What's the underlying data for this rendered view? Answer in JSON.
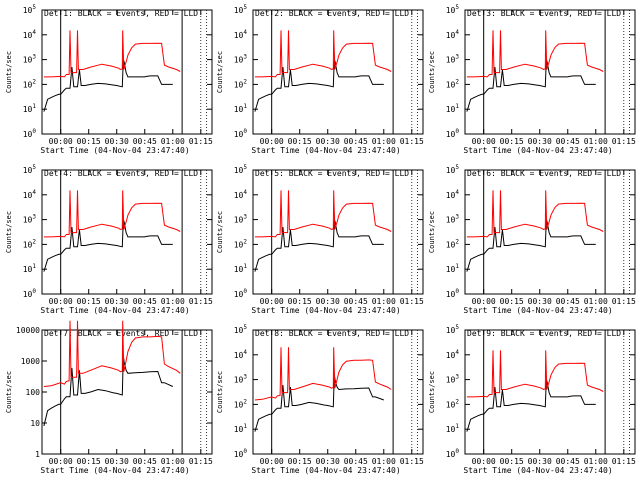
{
  "chart_data": [
    {
      "type": "line",
      "title": "Det 1: BLACK = Events, RED = LLD",
      "xlabel": "Start Time (04-Nov-04 23:47:40)",
      "ylabel": "Counts/sec",
      "ylog": true,
      "ylim": [
        1,
        100000
      ],
      "ytick_labels": [
        "10^0",
        "10^1",
        "10^2",
        "10^3",
        "10^4",
        "10^5"
      ],
      "x_tick_labels": [
        "00:00",
        "00:15",
        "00:30",
        "00:45",
        "01:00",
        "01:15"
      ],
      "series": [
        {
          "name": "Events",
          "color": "#000000",
          "key": "black_small"
        },
        {
          "name": "LLD",
          "color": "#ff0000",
          "key": "red_small"
        }
      ]
    },
    {
      "type": "line",
      "title": "Det 2: BLACK = Events, RED = LLD",
      "xlabel": "Start Time (04-Nov-04 23:47:40)",
      "ylabel": "Counts/sec",
      "ylog": true,
      "ylim": [
        1,
        100000
      ],
      "ytick_labels": [
        "10^0",
        "10^1",
        "10^2",
        "10^3",
        "10^4",
        "10^5"
      ],
      "x_tick_labels": [
        "00:00",
        "00:15",
        "00:30",
        "00:45",
        "01:00",
        "01:15"
      ],
      "series": [
        {
          "name": "Events",
          "color": "#000000",
          "key": "black_small"
        },
        {
          "name": "LLD",
          "color": "#ff0000",
          "key": "red_small"
        }
      ]
    },
    {
      "type": "line",
      "title": "Det 3: BLACK = Events, RED = LLD",
      "xlabel": "Start Time (04-Nov-04 23:47:40)",
      "ylabel": "Counts/sec",
      "ylog": true,
      "ylim": [
        1,
        100000
      ],
      "ytick_labels": [
        "10^0",
        "10^1",
        "10^2",
        "10^3",
        "10^4",
        "10^5"
      ],
      "x_tick_labels": [
        "00:00",
        "00:15",
        "00:30",
        "00:45",
        "01:00",
        "01:15"
      ],
      "series": [
        {
          "name": "Events",
          "color": "#000000",
          "key": "black_small"
        },
        {
          "name": "LLD",
          "color": "#ff0000",
          "key": "red_small"
        }
      ]
    },
    {
      "type": "line",
      "title": "Det 4: BLACK = Events, RED = LLD",
      "xlabel": "Start Time (04-Nov-04 23:47:40)",
      "ylabel": "Counts/sec",
      "ylog": true,
      "ylim": [
        1,
        100000
      ],
      "ytick_labels": [
        "10^0",
        "10^1",
        "10^2",
        "10^3",
        "10^4",
        "10^5"
      ],
      "x_tick_labels": [
        "00:00",
        "00:15",
        "00:30",
        "00:45",
        "01:00",
        "01:15"
      ],
      "series": [
        {
          "name": "Events",
          "color": "#000000",
          "key": "black_small"
        },
        {
          "name": "LLD",
          "color": "#ff0000",
          "key": "red_small"
        }
      ]
    },
    {
      "type": "line",
      "title": "Det 5: BLACK = Events, RED = LLD",
      "xlabel": "Start Time (04-Nov-04 23:47:40)",
      "ylabel": "Counts/sec",
      "ylog": true,
      "ylim": [
        1,
        100000
      ],
      "ytick_labels": [
        "10^0",
        "10^1",
        "10^2",
        "10^3",
        "10^4",
        "10^5"
      ],
      "x_tick_labels": [
        "00:00",
        "00:15",
        "00:30",
        "00:45",
        "01:00",
        "01:15"
      ],
      "series": [
        {
          "name": "Events",
          "color": "#000000",
          "key": "black_small"
        },
        {
          "name": "LLD",
          "color": "#ff0000",
          "key": "red_small"
        }
      ]
    },
    {
      "type": "line",
      "title": "Det 6: BLACK = Events, RED = LLD",
      "xlabel": "Start Time (04-Nov-04 23:47:40)",
      "ylabel": "Counts/sec",
      "ylog": true,
      "ylim": [
        1,
        100000
      ],
      "ytick_labels": [
        "10^0",
        "10^1",
        "10^2",
        "10^3",
        "10^4",
        "10^5"
      ],
      "x_tick_labels": [
        "00:00",
        "00:15",
        "00:30",
        "00:45",
        "01:00",
        "01:15"
      ],
      "series": [
        {
          "name": "Events",
          "color": "#000000",
          "key": "black_small"
        },
        {
          "name": "LLD",
          "color": "#ff0000",
          "key": "red_small"
        }
      ]
    },
    {
      "type": "line",
      "title": "Det 7: BLACK = Events, RED = LLD",
      "xlabel": "Start Time (04-Nov-04 23:47:40)",
      "ylabel": "Counts/sec",
      "ylog": true,
      "ylim": [
        1,
        10000
      ],
      "ytick_labels": [
        "1",
        "10",
        "100",
        "1000",
        "10000"
      ],
      "x_tick_labels": [
        "00:00",
        "00:15",
        "00:30",
        "00:45",
        "01:00",
        "01:15"
      ],
      "series": [
        {
          "name": "Events",
          "color": "#000000",
          "key": "black_big"
        },
        {
          "name": "LLD",
          "color": "#ff0000",
          "key": "red_big"
        }
      ]
    },
    {
      "type": "line",
      "title": "Det 8: BLACK = Events, RED = LLD",
      "xlabel": "Start Time (04-Nov-04 23:47:40)",
      "ylabel": "Counts/sec",
      "ylog": true,
      "ylim": [
        1,
        100000
      ],
      "ytick_labels": [
        "10^0",
        "10^1",
        "10^2",
        "10^3",
        "10^4",
        "10^5"
      ],
      "x_tick_labels": [
        "00:00",
        "00:15",
        "00:30",
        "00:45",
        "01:00",
        "01:15"
      ],
      "series": [
        {
          "name": "Events",
          "color": "#000000",
          "key": "black_big"
        },
        {
          "name": "LLD",
          "color": "#ff0000",
          "key": "red_big"
        }
      ]
    },
    {
      "type": "line",
      "title": "Det 9: BLACK = Events, RED = LLD",
      "xlabel": "Start Time (04-Nov-04 23:47:40)",
      "ylabel": "Counts/sec",
      "ylog": true,
      "ylim": [
        1,
        100000
      ],
      "ytick_labels": [
        "10^0",
        "10^1",
        "10^2",
        "10^3",
        "10^4",
        "10^5"
      ],
      "x_tick_labels": [
        "00:00",
        "00:15",
        "00:30",
        "00:45",
        "01:00",
        "01:15"
      ],
      "series": [
        {
          "name": "Events",
          "color": "#000000",
          "key": "black_small"
        },
        {
          "name": "LLD",
          "color": "#ff0000",
          "key": "red_small"
        }
      ]
    }
  ],
  "series_data": {
    "black_small": [
      [
        -9,
        8
      ],
      [
        -7,
        25
      ],
      [
        -5,
        30
      ],
      [
        -3,
        35
      ],
      [
        -1,
        40
      ],
      [
        0,
        40
      ],
      [
        2,
        60
      ],
      [
        3,
        70
      ],
      [
        5,
        70
      ],
      [
        6,
        500
      ],
      [
        7,
        80
      ],
      [
        9,
        80
      ],
      [
        10,
        400
      ],
      [
        11,
        90
      ],
      [
        13,
        90
      ],
      [
        16,
        100
      ],
      [
        20,
        110
      ],
      [
        24,
        105
      ],
      [
        28,
        95
      ],
      [
        30,
        90
      ],
      [
        33,
        80
      ],
      [
        33.5,
        1000
      ],
      [
        34,
        800
      ],
      [
        35,
        300
      ],
      [
        36,
        200
      ],
      [
        45,
        200
      ],
      [
        46,
        210
      ],
      [
        48,
        220
      ],
      [
        52,
        220
      ],
      [
        54,
        100
      ],
      [
        55.5,
        100
      ],
      [
        60,
        100
      ]
    ],
    "red_small": [
      [
        -9,
        200
      ],
      [
        -5,
        200
      ],
      [
        0,
        210
      ],
      [
        2,
        200
      ],
      [
        3,
        250
      ],
      [
        4.5,
        250
      ],
      [
        5,
        15000
      ],
      [
        5.5,
        300
      ],
      [
        7,
        300
      ],
      [
        8.5,
        300
      ],
      [
        9,
        15000
      ],
      [
        9.5,
        400
      ],
      [
        12,
        400
      ],
      [
        16,
        500
      ],
      [
        22,
        650
      ],
      [
        27,
        550
      ],
      [
        31,
        450
      ],
      [
        32,
        400
      ],
      [
        33,
        420
      ],
      [
        33.2,
        15000
      ],
      [
        33.8,
        400
      ],
      [
        34.5,
        600
      ],
      [
        35,
        800
      ],
      [
        36,
        1500
      ],
      [
        38,
        3000
      ],
      [
        40,
        4200
      ],
      [
        44,
        4500
      ],
      [
        48,
        4500
      ],
      [
        52,
        4600
      ],
      [
        54,
        4500
      ],
      [
        55.5,
        600
      ],
      [
        58,
        500
      ],
      [
        62,
        400
      ],
      [
        64,
        330
      ]
    ],
    "black_big": [
      [
        -9,
        8
      ],
      [
        -7,
        25
      ],
      [
        -5,
        30
      ],
      [
        -3,
        35
      ],
      [
        -1,
        40
      ],
      [
        0,
        40
      ],
      [
        2,
        60
      ],
      [
        3,
        70
      ],
      [
        5,
        70
      ],
      [
        6,
        600
      ],
      [
        7,
        80
      ],
      [
        9,
        80
      ],
      [
        10,
        500
      ],
      [
        11,
        90
      ],
      [
        13,
        90
      ],
      [
        16,
        100
      ],
      [
        20,
        120
      ],
      [
        24,
        110
      ],
      [
        28,
        95
      ],
      [
        30,
        90
      ],
      [
        33,
        80
      ],
      [
        33.5,
        1500
      ],
      [
        34,
        900
      ],
      [
        35,
        500
      ],
      [
        36,
        400
      ],
      [
        40,
        420
      ],
      [
        44,
        430
      ],
      [
        48,
        450
      ],
      [
        52,
        460
      ],
      [
        54,
        200
      ],
      [
        55.5,
        200
      ],
      [
        60,
        150
      ]
    ],
    "red_big": [
      [
        -9,
        150
      ],
      [
        -5,
        160
      ],
      [
        0,
        200
      ],
      [
        2,
        180
      ],
      [
        3,
        220
      ],
      [
        4.5,
        230
      ],
      [
        5,
        20000
      ],
      [
        5.5,
        300
      ],
      [
        7,
        300
      ],
      [
        8.5,
        300
      ],
      [
        9,
        20000
      ],
      [
        9.5,
        400
      ],
      [
        12,
        400
      ],
      [
        16,
        500
      ],
      [
        22,
        700
      ],
      [
        27,
        600
      ],
      [
        31,
        500
      ],
      [
        32,
        450
      ],
      [
        33,
        480
      ],
      [
        33.2,
        20000
      ],
      [
        33.8,
        450
      ],
      [
        34.5,
        700
      ],
      [
        35,
        1000
      ],
      [
        36,
        2000
      ],
      [
        38,
        4000
      ],
      [
        40,
        5500
      ],
      [
        44,
        6000
      ],
      [
        48,
        6000
      ],
      [
        52,
        6200
      ],
      [
        54,
        6000
      ],
      [
        55.5,
        800
      ],
      [
        58,
        650
      ],
      [
        62,
        500
      ],
      [
        64,
        400
      ]
    ]
  },
  "colors": {
    "events": "#000000",
    "lld": "#ff0000",
    "frame": "#000000",
    "background": "#ffffff"
  },
  "layout": {
    "x_min_minutes": -10,
    "x_max_minutes": 81
  }
}
